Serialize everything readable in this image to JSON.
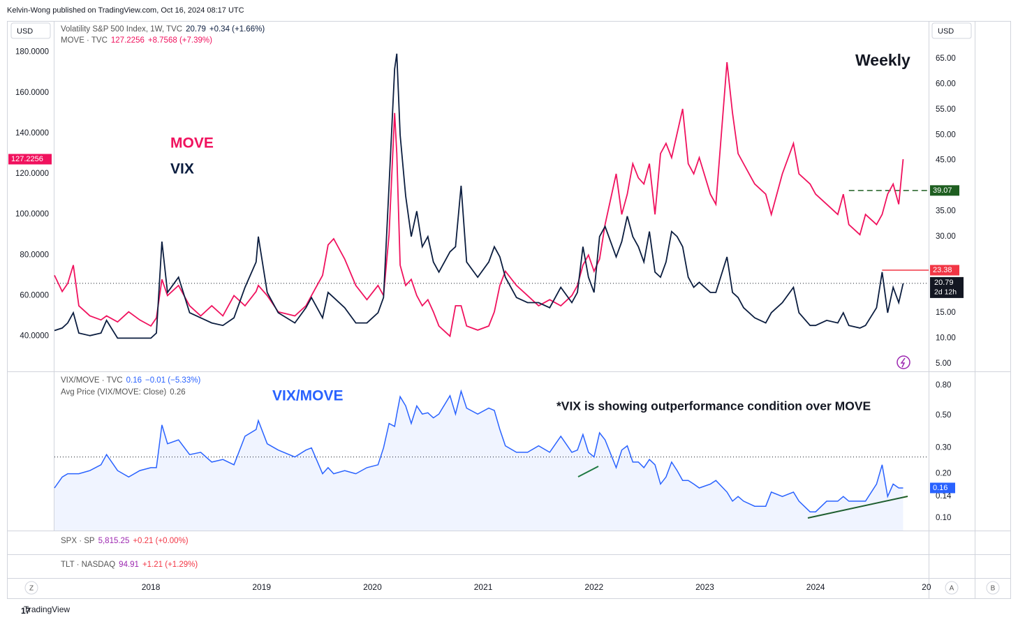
{
  "header": "Kelvin-Wong published on TradingView.com, Oct 16, 2024 08:17 UTC",
  "currency": "USD",
  "chart_data": [
    {
      "type": "line",
      "legend": [
        {
          "name": "Volatility S&P 500 Index, 1W, TVC",
          "last": 20.79,
          "change": "+0.34 (+1.66%)"
        },
        {
          "name": "MOVE · TVC",
          "last": 127.2256,
          "change": "+8.7568 (+7.39%)"
        }
      ],
      "annotations": [
        {
          "text": "MOVE",
          "color": "#f0125e"
        },
        {
          "text": "VIX",
          "color": "#0b1d3f"
        },
        {
          "text": "Weekly",
          "color": "#131722"
        }
      ],
      "countdown": "2d 12h",
      "levels": [
        {
          "value": 39.07,
          "color": "#1e5e20",
          "from": 2024.3
        },
        {
          "value": 23.38,
          "color": "#f23645",
          "from": 2024.6
        }
      ],
      "x": [
        2017.13,
        2017.2,
        2017.25,
        2017.3,
        2017.35,
        2017.45,
        2017.55,
        2017.6,
        2017.7,
        2017.8,
        2017.9,
        2018.0,
        2018.05,
        2018.1,
        2018.15,
        2018.25,
        2018.35,
        2018.45,
        2018.55,
        2018.65,
        2018.75,
        2018.85,
        2018.95,
        2018.97,
        2019.05,
        2019.15,
        2019.3,
        2019.4,
        2019.45,
        2019.55,
        2019.6,
        2019.65,
        2019.75,
        2019.85,
        2019.95,
        2020.05,
        2020.1,
        2020.15,
        2020.2,
        2020.22,
        2020.25,
        2020.3,
        2020.35,
        2020.4,
        2020.45,
        2020.5,
        2020.55,
        2020.6,
        2020.7,
        2020.75,
        2020.8,
        2020.85,
        2020.95,
        2021.05,
        2021.1,
        2021.15,
        2021.2,
        2021.3,
        2021.4,
        2021.5,
        2021.6,
        2021.7,
        2021.8,
        2021.85,
        2021.9,
        2021.95,
        2022.0,
        2022.05,
        2022.1,
        2022.2,
        2022.25,
        2022.3,
        2022.35,
        2022.4,
        2022.45,
        2022.5,
        2022.55,
        2022.6,
        2022.65,
        2022.7,
        2022.75,
        2022.8,
        2022.85,
        2022.9,
        2022.95,
        2023.05,
        2023.1,
        2023.2,
        2023.25,
        2023.3,
        2023.35,
        2023.45,
        2023.55,
        2023.6,
        2023.7,
        2023.8,
        2023.85,
        2023.95,
        2024.0,
        2024.1,
        2024.2,
        2024.25,
        2024.3,
        2024.4,
        2024.45,
        2024.55,
        2024.6,
        2024.65,
        2024.7,
        2024.75,
        2024.79
      ],
      "xlim": [
        2017.13,
        2025.02
      ],
      "xticks": [
        2018,
        2019,
        2020,
        2021,
        2022,
        2023,
        2024,
        {
          "value": 2025,
          "label": "20"
        }
      ],
      "ylim": [
        23,
        195
      ],
      "yticks": [
        {
          "value": 40,
          "label": "40.0000"
        },
        {
          "value": 60,
          "label": "60.0000"
        },
        {
          "value": 80,
          "label": "80.0000"
        },
        {
          "value": 100,
          "label": "100.0000"
        },
        {
          "value": 120,
          "label": "120.0000"
        },
        {
          "value": 140,
          "label": "140.0000"
        },
        {
          "value": 160,
          "label": "160.0000"
        },
        {
          "value": 180,
          "label": "180.0000"
        }
      ],
      "y2lim": [
        3.6,
        72.3
      ],
      "y2ticks": [
        {
          "value": 5,
          "label": "5.00"
        },
        {
          "value": 10,
          "label": "10.00"
        },
        {
          "value": 15,
          "label": "15.00"
        },
        {
          "value": 30,
          "label": "30.00"
        },
        {
          "value": 35,
          "label": "35.00"
        },
        {
          "value": 45,
          "label": "45.00"
        },
        {
          "value": 50,
          "label": "50.00"
        },
        {
          "value": 55,
          "label": "55.00"
        },
        {
          "value": 60,
          "label": "60.00"
        },
        {
          "value": 65,
          "label": "65.00"
        }
      ],
      "grid": false,
      "series": [
        {
          "name": "MOVE",
          "color": "#f0125e",
          "values": [
            70,
            62,
            66,
            75,
            55,
            50,
            48,
            50,
            47,
            52,
            48,
            45,
            49,
            68,
            60,
            65,
            55,
            50,
            55,
            50,
            60,
            55,
            62,
            65,
            60,
            52,
            50,
            55,
            60,
            70,
            85,
            88,
            78,
            65,
            58,
            65,
            60,
            90,
            150,
            130,
            75,
            65,
            68,
            60,
            55,
            58,
            52,
            45,
            40,
            55,
            55,
            45,
            43,
            45,
            52,
            65,
            72,
            65,
            60,
            55,
            58,
            55,
            60,
            65,
            75,
            80,
            72,
            78,
            95,
            120,
            100,
            110,
            125,
            118,
            115,
            125,
            100,
            130,
            135,
            128,
            140,
            152,
            125,
            120,
            128,
            110,
            105,
            175,
            150,
            130,
            125,
            115,
            110,
            100,
            120,
            135,
            120,
            115,
            110,
            105,
            100,
            110,
            95,
            90,
            100,
            95,
            100,
            110,
            115,
            105,
            127.2256
          ]
        },
        {
          "name": "VIX",
          "color": "#0b1d3f",
          "axis": "y2",
          "values": [
            11.5,
            12,
            13,
            15,
            11,
            10.5,
            11,
            13.5,
            10,
            10,
            10,
            10,
            11,
            29,
            19,
            22,
            15,
            14,
            13,
            12.5,
            14,
            20,
            25,
            30,
            19,
            15,
            13,
            16,
            18,
            14,
            19,
            18,
            16,
            13,
            13,
            15,
            18,
            40,
            63,
            66,
            50,
            38,
            30,
            35,
            28,
            30,
            25,
            23,
            27,
            28,
            40,
            25,
            22,
            25,
            28,
            26,
            22,
            18,
            17,
            17,
            16,
            20,
            17,
            19,
            28,
            22,
            19,
            30,
            32,
            26,
            29,
            34,
            30,
            28,
            25,
            31,
            23,
            22,
            25,
            31,
            30,
            28,
            22,
            20,
            21,
            19,
            19,
            26,
            19,
            18,
            16,
            14,
            13,
            15,
            17,
            20,
            15,
            12.5,
            12.5,
            13.5,
            13,
            15,
            12.5,
            12,
            12.5,
            16,
            23,
            15,
            20,
            17,
            20.79
          ]
        }
      ]
    },
    {
      "type": "area",
      "legend": [
        {
          "name": "VIX/MOVE · TVC",
          "last": 0.16,
          "change": "−0.01 (−5.33%)"
        },
        {
          "name": "Avg Price (VIX/MOVE: Close)",
          "last": 0.26
        }
      ],
      "annotations": [
        {
          "text": "VIX/MOVE",
          "color": "#2962ff"
        },
        {
          "text": "*VIX is showing outperformance condition over MOVE",
          "color": "#131722"
        }
      ],
      "x": [
        2017.13,
        2017.2,
        2017.25,
        2017.3,
        2017.35,
        2017.45,
        2017.55,
        2017.6,
        2017.7,
        2017.8,
        2017.9,
        2018.0,
        2018.05,
        2018.1,
        2018.15,
        2018.25,
        2018.35,
        2018.45,
        2018.55,
        2018.65,
        2018.75,
        2018.85,
        2018.95,
        2018.97,
        2019.05,
        2019.15,
        2019.3,
        2019.4,
        2019.45,
        2019.55,
        2019.6,
        2019.65,
        2019.75,
        2019.85,
        2019.95,
        2020.05,
        2020.1,
        2020.15,
        2020.2,
        2020.22,
        2020.25,
        2020.3,
        2020.35,
        2020.4,
        2020.45,
        2020.5,
        2020.55,
        2020.6,
        2020.7,
        2020.75,
        2020.8,
        2020.85,
        2020.95,
        2021.05,
        2021.1,
        2021.15,
        2021.2,
        2021.3,
        2021.4,
        2021.5,
        2021.6,
        2021.7,
        2021.8,
        2021.85,
        2021.9,
        2021.95,
        2022.0,
        2022.05,
        2022.1,
        2022.2,
        2022.25,
        2022.3,
        2022.35,
        2022.4,
        2022.45,
        2022.5,
        2022.55,
        2022.6,
        2022.65,
        2022.7,
        2022.75,
        2022.8,
        2022.85,
        2022.9,
        2022.95,
        2023.05,
        2023.1,
        2023.2,
        2023.25,
        2023.3,
        2023.35,
        2023.45,
        2023.55,
        2023.6,
        2023.7,
        2023.8,
        2023.85,
        2023.95,
        2024.0,
        2024.1,
        2024.2,
        2024.25,
        2024.3,
        2024.4,
        2024.45,
        2024.55,
        2024.6,
        2024.65,
        2024.7,
        2024.75,
        2024.79
      ],
      "xlim": [
        2017.13,
        2025.02
      ],
      "ylim": [
        0.082,
        0.985
      ],
      "log_scale": true,
      "yticks": [
        {
          "value": 0.1,
          "label": "0.10"
        },
        {
          "value": 0.14,
          "label": "0.14"
        },
        {
          "value": 0.2,
          "label": "0.20"
        },
        {
          "value": 0.3,
          "label": "0.30"
        },
        {
          "value": 0.5,
          "label": "0.50"
        },
        {
          "value": 0.8,
          "label": "0.80"
        }
      ],
      "series": [
        {
          "name": "VIX/MOVE",
          "color": "#2962ff",
          "values": [
            0.16,
            0.19,
            0.2,
            0.2,
            0.2,
            0.21,
            0.23,
            0.27,
            0.21,
            0.19,
            0.21,
            0.22,
            0.22,
            0.43,
            0.32,
            0.34,
            0.27,
            0.28,
            0.24,
            0.25,
            0.23,
            0.36,
            0.4,
            0.46,
            0.32,
            0.29,
            0.26,
            0.29,
            0.3,
            0.2,
            0.22,
            0.2,
            0.21,
            0.2,
            0.22,
            0.23,
            0.3,
            0.44,
            0.42,
            0.51,
            0.67,
            0.58,
            0.44,
            0.58,
            0.51,
            0.52,
            0.48,
            0.51,
            0.68,
            0.51,
            0.73,
            0.56,
            0.51,
            0.56,
            0.54,
            0.4,
            0.31,
            0.28,
            0.28,
            0.31,
            0.28,
            0.36,
            0.28,
            0.29,
            0.37,
            0.28,
            0.26,
            0.38,
            0.34,
            0.22,
            0.29,
            0.31,
            0.24,
            0.24,
            0.22,
            0.25,
            0.23,
            0.17,
            0.19,
            0.24,
            0.21,
            0.18,
            0.18,
            0.17,
            0.16,
            0.17,
            0.18,
            0.15,
            0.13,
            0.14,
            0.13,
            0.12,
            0.12,
            0.15,
            0.14,
            0.15,
            0.13,
            0.11,
            0.11,
            0.13,
            0.13,
            0.14,
            0.13,
            0.13,
            0.13,
            0.17,
            0.23,
            0.14,
            0.17,
            0.16,
            0.16
          ]
        }
      ]
    }
  ],
  "panes": [
    {
      "name": "SPX · SP",
      "last": "5,815.25",
      "change": "+0.21 (+0.00%)"
    },
    {
      "name": "TLT · NASDAQ",
      "last": "94.91",
      "change": "+1.21 (+1.29%)"
    }
  ],
  "buttons": [
    "Z",
    "A",
    "B"
  ],
  "footer": "TradingView"
}
